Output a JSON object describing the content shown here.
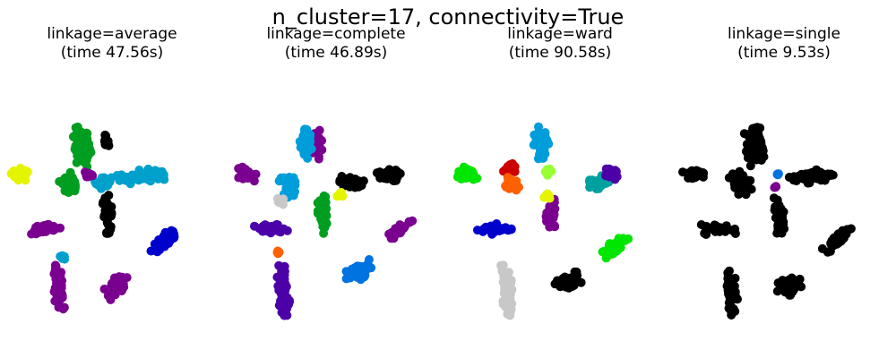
{
  "figure": {
    "suptitle": "n_cluster=17, connectivity=True"
  },
  "chart_data": [
    {
      "type": "scatter",
      "title": "linkage=average",
      "subtitle": "(time 47.56s)",
      "grid": false,
      "axes_visible": false,
      "clusters": [
        {
          "color": "#e5f500",
          "blobs": [
            [
              -0.86,
              0.3,
              0.1,
              0.06,
              -12
            ]
          ]
        },
        {
          "color": "#009e20",
          "blobs": [
            [
              -0.28,
              0.55,
              0.08,
              0.2,
              6
            ],
            [
              -0.4,
              0.22,
              0.08,
              0.12,
              30
            ]
          ]
        },
        {
          "color": "#00a0cc",
          "blobs": [
            [
              0.27,
              0.28,
              0.22,
              0.06,
              6
            ],
            [
              -0.08,
              0.22,
              0.08,
              0.06,
              0
            ]
          ]
        },
        {
          "color": "#000000",
          "blobs": [
            [
              -0.04,
              -0.08,
              0.05,
              0.18,
              4
            ],
            [
              -0.07,
              0.62,
              0.04,
              0.05,
              0
            ]
          ]
        },
        {
          "color": "#7a0090",
          "blobs": [
            [
              -0.62,
              -0.22,
              0.16,
              0.05,
              2
            ],
            [
              -0.5,
              -0.8,
              0.05,
              0.24,
              6
            ],
            [
              0.05,
              -0.76,
              0.12,
              0.08,
              30
            ],
            [
              -0.22,
              0.3,
              0.05,
              0.04,
              0
            ]
          ]
        },
        {
          "color": "#0000cc",
          "blobs": [
            [
              0.5,
              -0.32,
              0.17,
              0.05,
              38
            ]
          ]
        },
        {
          "color": "#00a0cc",
          "blobs": [
            [
              -0.46,
              -0.48,
              0.03,
              0.03,
              0
            ]
          ]
        }
      ]
    },
    {
      "type": "scatter",
      "title": "linkage=complete",
      "subtitle": "(time 46.89s)",
      "grid": false,
      "axes_visible": false,
      "clusters": [
        {
          "color": "#7a0090",
          "blobs": [
            [
              -0.86,
              0.3,
              0.1,
              0.06,
              -12
            ],
            [
              -0.2,
              0.58,
              0.07,
              0.14,
              8
            ],
            [
              0.6,
              -0.22,
              0.15,
              0.05,
              38
            ]
          ]
        },
        {
          "color": "#009ddb",
          "blobs": [
            [
              -0.28,
              0.6,
              0.06,
              0.15,
              6
            ],
            [
              -0.45,
              0.2,
              0.07,
              0.13,
              20
            ]
          ]
        },
        {
          "color": "#000000",
          "blobs": [
            [
              0.47,
              0.28,
              0.14,
              0.06,
              6
            ],
            [
              0.14,
              0.22,
              0.12,
              0.06,
              -5
            ]
          ]
        },
        {
          "color": "#009e20",
          "blobs": [
            [
              -0.12,
              -0.08,
              0.05,
              0.18,
              4
            ]
          ]
        },
        {
          "color": "#4c00a8",
          "blobs": [
            [
              -0.62,
              -0.22,
              0.16,
              0.05,
              2
            ],
            [
              -0.5,
              -0.8,
              0.05,
              0.24,
              6
            ]
          ]
        },
        {
          "color": "#0073e0",
          "blobs": [
            [
              0.22,
              -0.62,
              0.14,
              0.07,
              35
            ]
          ]
        },
        {
          "color": "#c8c8c8",
          "blobs": [
            [
              -0.52,
              0.04,
              0.04,
              0.04,
              0
            ]
          ]
        },
        {
          "color": "#e5f500",
          "blobs": [
            [
              0.05,
              0.1,
              0.04,
              0.04,
              0
            ]
          ]
        },
        {
          "color": "#ff6000",
          "blobs": [
            [
              -0.54,
              -0.44,
              0.02,
              0.02,
              0
            ]
          ]
        }
      ]
    },
    {
      "type": "scatter",
      "title": "linkage=ward",
      "subtitle": "(time 90.58s)",
      "grid": false,
      "axes_visible": false,
      "clusters": [
        {
          "color": "#00e600",
          "blobs": [
            [
              -0.86,
              0.3,
              0.1,
              0.06,
              -12
            ],
            [
              0.52,
              -0.38,
              0.14,
              0.05,
              38
            ]
          ]
        },
        {
          "color": "#009ddb",
          "blobs": [
            [
              -0.18,
              0.6,
              0.07,
              0.15,
              6
            ]
          ]
        },
        {
          "color": "#cc0000",
          "blobs": [
            [
              -0.48,
              0.36,
              0.06,
              0.06,
              0
            ]
          ]
        },
        {
          "color": "#ff6000",
          "blobs": [
            [
              -0.46,
              0.2,
              0.07,
              0.07,
              0
            ]
          ]
        },
        {
          "color": "#00a0a0",
          "blobs": [
            [
              0.34,
              0.22,
              0.12,
              0.06,
              6
            ]
          ]
        },
        {
          "color": "#4c00a8",
          "blobs": [
            [
              0.48,
              0.3,
              0.08,
              0.05,
              0
            ]
          ]
        },
        {
          "color": "#7a0090",
          "blobs": [
            [
              -0.08,
              -0.1,
              0.05,
              0.16,
              4
            ]
          ]
        },
        {
          "color": "#0000cc",
          "blobs": [
            [
              -0.62,
              -0.22,
              0.16,
              0.05,
              2
            ]
          ]
        },
        {
          "color": "#c8c8c8",
          "blobs": [
            [
              -0.5,
              -0.8,
              0.05,
              0.24,
              6
            ]
          ]
        },
        {
          "color": "#000000",
          "blobs": [
            [
              0.08,
              -0.72,
              0.12,
              0.08,
              30
            ]
          ]
        },
        {
          "color": "#99ff33",
          "blobs": [
            [
              -0.12,
              0.34,
              0.04,
              0.05,
              0
            ]
          ]
        },
        {
          "color": "#e5f500",
          "blobs": [
            [
              -0.12,
              0.1,
              0.03,
              0.03,
              0
            ]
          ]
        }
      ]
    },
    {
      "type": "scatter",
      "title": "linkage=single",
      "subtitle": "(time 9.53s)",
      "grid": false,
      "axes_visible": false,
      "clusters": [
        {
          "color": "#000000",
          "blobs": [
            [
              -0.86,
              0.3,
              0.1,
              0.06,
              -12
            ],
            [
              -0.28,
              0.55,
              0.08,
              0.2,
              6
            ],
            [
              -0.4,
              0.22,
              0.08,
              0.12,
              30
            ],
            [
              0.27,
              0.28,
              0.22,
              0.06,
              6
            ],
            [
              -0.04,
              -0.08,
              0.05,
              0.18,
              4
            ],
            [
              -0.62,
              -0.22,
              0.16,
              0.05,
              2
            ],
            [
              -0.5,
              -0.8,
              0.05,
              0.24,
              6
            ],
            [
              0.05,
              -0.76,
              0.12,
              0.08,
              30
            ],
            [
              0.5,
              -0.32,
              0.17,
              0.05,
              38
            ]
          ]
        },
        {
          "color": "#0073e0",
          "blobs": [
            [
              -0.06,
              0.3,
              0.01,
              0.01,
              0
            ]
          ]
        },
        {
          "color": "#7a0090",
          "blobs": [
            [
              -0.08,
              0.18,
              0.01,
              0.01,
              0
            ]
          ]
        }
      ]
    }
  ]
}
